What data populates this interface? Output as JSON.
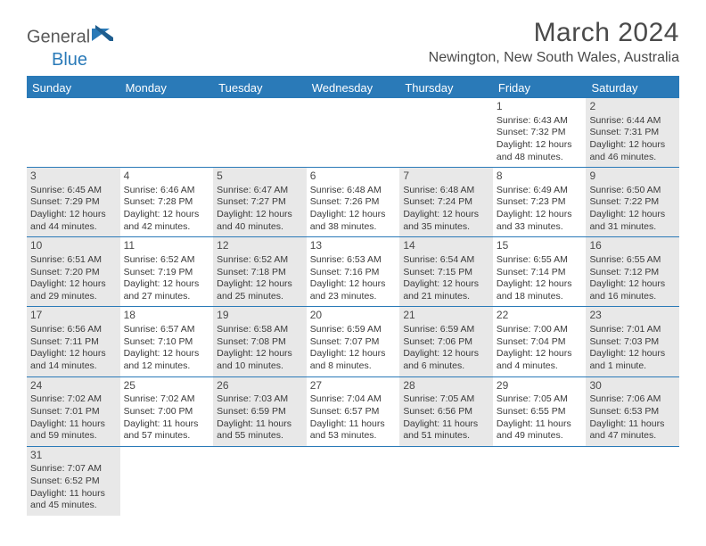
{
  "logo": {
    "text1": "General",
    "text2": "Blue"
  },
  "title": "March 2024",
  "location": "Newington, New South Wales, Australia",
  "colors": {
    "brand_blue": "#2a7ab8",
    "grey_bg": "#e8e8e8",
    "text": "#4a4a4a"
  },
  "dayHeaders": [
    "Sunday",
    "Monday",
    "Tuesday",
    "Wednesday",
    "Thursday",
    "Friday",
    "Saturday"
  ],
  "weeks": [
    [
      {
        "day": "",
        "lines": []
      },
      {
        "day": "",
        "lines": []
      },
      {
        "day": "",
        "lines": []
      },
      {
        "day": "",
        "lines": []
      },
      {
        "day": "",
        "lines": []
      },
      {
        "day": "1",
        "lines": [
          "Sunrise: 6:43 AM",
          "Sunset: 7:32 PM",
          "Daylight: 12 hours and 48 minutes."
        ]
      },
      {
        "day": "2",
        "lines": [
          "Sunrise: 6:44 AM",
          "Sunset: 7:31 PM",
          "Daylight: 12 hours and 46 minutes."
        ]
      }
    ],
    [
      {
        "day": "3",
        "lines": [
          "Sunrise: 6:45 AM",
          "Sunset: 7:29 PM",
          "Daylight: 12 hours and 44 minutes."
        ]
      },
      {
        "day": "4",
        "lines": [
          "Sunrise: 6:46 AM",
          "Sunset: 7:28 PM",
          "Daylight: 12 hours and 42 minutes."
        ]
      },
      {
        "day": "5",
        "lines": [
          "Sunrise: 6:47 AM",
          "Sunset: 7:27 PM",
          "Daylight: 12 hours and 40 minutes."
        ]
      },
      {
        "day": "6",
        "lines": [
          "Sunrise: 6:48 AM",
          "Sunset: 7:26 PM",
          "Daylight: 12 hours and 38 minutes."
        ]
      },
      {
        "day": "7",
        "lines": [
          "Sunrise: 6:48 AM",
          "Sunset: 7:24 PM",
          "Daylight: 12 hours and 35 minutes."
        ]
      },
      {
        "day": "8",
        "lines": [
          "Sunrise: 6:49 AM",
          "Sunset: 7:23 PM",
          "Daylight: 12 hours and 33 minutes."
        ]
      },
      {
        "day": "9",
        "lines": [
          "Sunrise: 6:50 AM",
          "Sunset: 7:22 PM",
          "Daylight: 12 hours and 31 minutes."
        ]
      }
    ],
    [
      {
        "day": "10",
        "lines": [
          "Sunrise: 6:51 AM",
          "Sunset: 7:20 PM",
          "Daylight: 12 hours and 29 minutes."
        ]
      },
      {
        "day": "11",
        "lines": [
          "Sunrise: 6:52 AM",
          "Sunset: 7:19 PM",
          "Daylight: 12 hours and 27 minutes."
        ]
      },
      {
        "day": "12",
        "lines": [
          "Sunrise: 6:52 AM",
          "Sunset: 7:18 PM",
          "Daylight: 12 hours and 25 minutes."
        ]
      },
      {
        "day": "13",
        "lines": [
          "Sunrise: 6:53 AM",
          "Sunset: 7:16 PM",
          "Daylight: 12 hours and 23 minutes."
        ]
      },
      {
        "day": "14",
        "lines": [
          "Sunrise: 6:54 AM",
          "Sunset: 7:15 PM",
          "Daylight: 12 hours and 21 minutes."
        ]
      },
      {
        "day": "15",
        "lines": [
          "Sunrise: 6:55 AM",
          "Sunset: 7:14 PM",
          "Daylight: 12 hours and 18 minutes."
        ]
      },
      {
        "day": "16",
        "lines": [
          "Sunrise: 6:55 AM",
          "Sunset: 7:12 PM",
          "Daylight: 12 hours and 16 minutes."
        ]
      }
    ],
    [
      {
        "day": "17",
        "lines": [
          "Sunrise: 6:56 AM",
          "Sunset: 7:11 PM",
          "Daylight: 12 hours and 14 minutes."
        ]
      },
      {
        "day": "18",
        "lines": [
          "Sunrise: 6:57 AM",
          "Sunset: 7:10 PM",
          "Daylight: 12 hours and 12 minutes."
        ]
      },
      {
        "day": "19",
        "lines": [
          "Sunrise: 6:58 AM",
          "Sunset: 7:08 PM",
          "Daylight: 12 hours and 10 minutes."
        ]
      },
      {
        "day": "20",
        "lines": [
          "Sunrise: 6:59 AM",
          "Sunset: 7:07 PM",
          "Daylight: 12 hours and 8 minutes."
        ]
      },
      {
        "day": "21",
        "lines": [
          "Sunrise: 6:59 AM",
          "Sunset: 7:06 PM",
          "Daylight: 12 hours and 6 minutes."
        ]
      },
      {
        "day": "22",
        "lines": [
          "Sunrise: 7:00 AM",
          "Sunset: 7:04 PM",
          "Daylight: 12 hours and 4 minutes."
        ]
      },
      {
        "day": "23",
        "lines": [
          "Sunrise: 7:01 AM",
          "Sunset: 7:03 PM",
          "Daylight: 12 hours and 1 minute."
        ]
      }
    ],
    [
      {
        "day": "24",
        "lines": [
          "Sunrise: 7:02 AM",
          "Sunset: 7:01 PM",
          "Daylight: 11 hours and 59 minutes."
        ]
      },
      {
        "day": "25",
        "lines": [
          "Sunrise: 7:02 AM",
          "Sunset: 7:00 PM",
          "Daylight: 11 hours and 57 minutes."
        ]
      },
      {
        "day": "26",
        "lines": [
          "Sunrise: 7:03 AM",
          "Sunset: 6:59 PM",
          "Daylight: 11 hours and 55 minutes."
        ]
      },
      {
        "day": "27",
        "lines": [
          "Sunrise: 7:04 AM",
          "Sunset: 6:57 PM",
          "Daylight: 11 hours and 53 minutes."
        ]
      },
      {
        "day": "28",
        "lines": [
          "Sunrise: 7:05 AM",
          "Sunset: 6:56 PM",
          "Daylight: 11 hours and 51 minutes."
        ]
      },
      {
        "day": "29",
        "lines": [
          "Sunrise: 7:05 AM",
          "Sunset: 6:55 PM",
          "Daylight: 11 hours and 49 minutes."
        ]
      },
      {
        "day": "30",
        "lines": [
          "Sunrise: 7:06 AM",
          "Sunset: 6:53 PM",
          "Daylight: 11 hours and 47 minutes."
        ]
      }
    ],
    [
      {
        "day": "31",
        "lines": [
          "Sunrise: 7:07 AM",
          "Sunset: 6:52 PM",
          "Daylight: 11 hours and 45 minutes."
        ]
      },
      {
        "day": "",
        "lines": []
      },
      {
        "day": "",
        "lines": []
      },
      {
        "day": "",
        "lines": []
      },
      {
        "day": "",
        "lines": []
      },
      {
        "day": "",
        "lines": []
      },
      {
        "day": "",
        "lines": []
      }
    ]
  ]
}
